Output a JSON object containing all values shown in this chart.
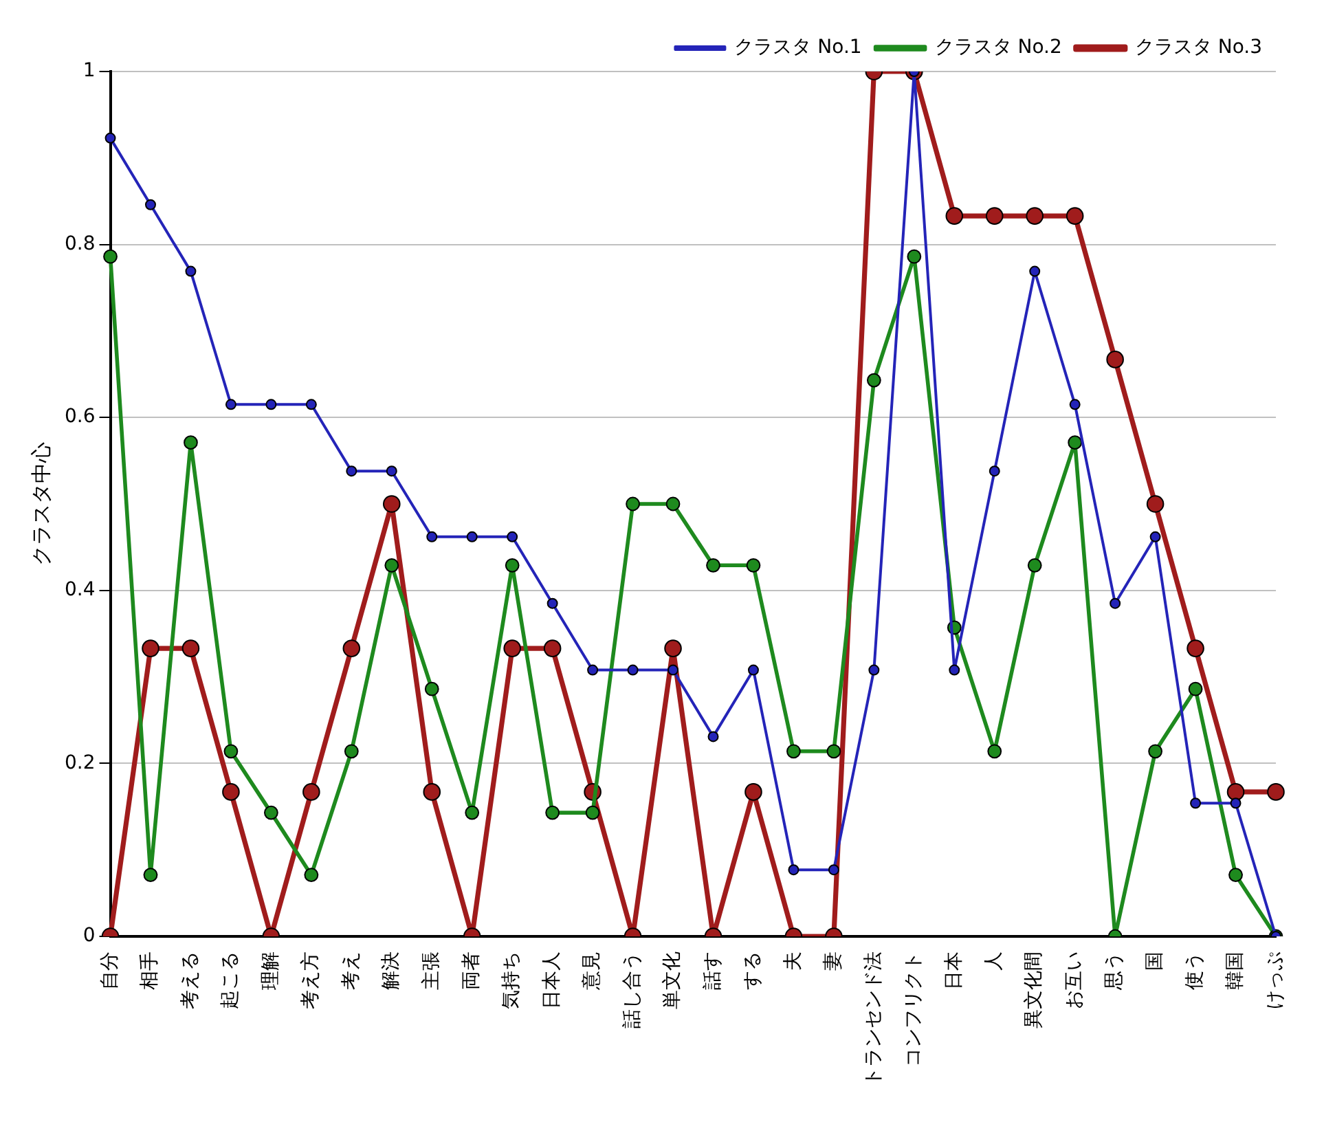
{
  "chart_data": {
    "type": "line",
    "ylabel": "クラスタ中心",
    "categories": [
      "自分",
      "相手",
      "考える",
      "起こる",
      "理解",
      "考え方",
      "考え",
      "解決",
      "主張",
      "両者",
      "気持ち",
      "日本人",
      "意見",
      "話し合う",
      "単文化",
      "話す",
      "する",
      "夫",
      "妻",
      "トランセンド法",
      "コンフリクト",
      "日本",
      "人",
      "異文化間",
      "お互い",
      "思う",
      "国",
      "使う",
      "韓国",
      "けっぷ"
    ],
    "series": [
      {
        "name": "クラスタ No.1",
        "color": "#2424b8",
        "values": [
          0.923,
          0.846,
          0.769,
          0.615,
          0.615,
          0.615,
          0.538,
          0.538,
          0.462,
          0.462,
          0.462,
          0.385,
          0.308,
          0.308,
          0.308,
          0.231,
          0.308,
          0.077,
          0.077,
          0.308,
          1,
          0.308,
          0.538,
          0.769,
          0.615,
          0.385,
          0.462,
          0.154,
          0.154,
          0
        ]
      },
      {
        "name": "クラスタ No.2",
        "color": "#1e8a1e",
        "values": [
          0.786,
          0.071,
          0.571,
          0.214,
          0.143,
          0.071,
          0.214,
          0.429,
          0.286,
          0.143,
          0.429,
          0.143,
          0.143,
          0.5,
          0.5,
          0.429,
          0.429,
          0.214,
          0.214,
          0.643,
          0.786,
          0.357,
          0.214,
          0.429,
          0.571,
          0,
          0.214,
          0.286,
          0.071,
          0
        ]
      },
      {
        "name": "クラスタ No.3",
        "color": "#a01c1c",
        "values": [
          0,
          0.333,
          0.333,
          0.167,
          0,
          0.167,
          0.333,
          0.5,
          0.167,
          0,
          0.333,
          0.333,
          0.167,
          0,
          0.333,
          0,
          0.167,
          0,
          0,
          1,
          1,
          0.833,
          0.833,
          0.833,
          0.833,
          0.667,
          0.5,
          0.333,
          0.167,
          0.167
        ]
      }
    ],
    "ylim": [
      0,
      1
    ],
    "yticks": [
      0,
      0.2,
      0.4,
      0.6,
      0.8,
      1
    ],
    "grid": "y",
    "legend": "top right",
    "marker": "circle",
    "line_style": "solid"
  }
}
